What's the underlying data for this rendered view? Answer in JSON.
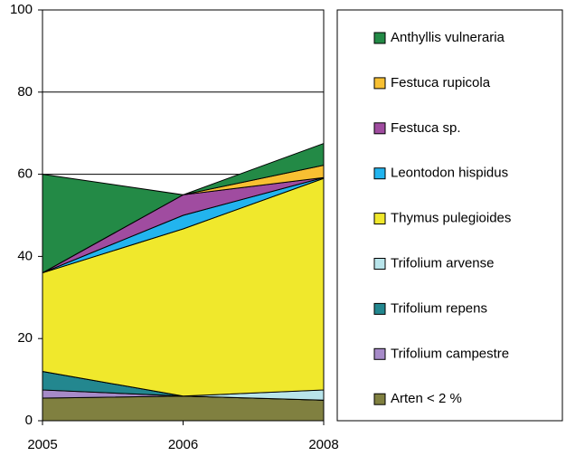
{
  "chart_data": {
    "type": "stacked-area",
    "categories": [
      "2005",
      "2006",
      "2008"
    ],
    "series": [
      {
        "name": "Arten < 2 %",
        "color": "#808040",
        "values": [
          5.5,
          6,
          5
        ]
      },
      {
        "name": "Trifolium campestre",
        "color": "#a68ac8",
        "values": [
          2,
          0,
          0
        ]
      },
      {
        "name": "Trifolium repens",
        "color": "#23878f",
        "values": [
          4.5,
          0,
          0
        ]
      },
      {
        "name": "Trifolium arvense",
        "color": "#b8e4ea",
        "values": [
          0,
          0,
          2.5
        ]
      },
      {
        "name": "Thymus pulegioides",
        "color": "#f0e82c",
        "values": [
          24,
          40.7,
          51.5
        ]
      },
      {
        "name": "Leontodon hispidus",
        "color": "#22b4ee",
        "values": [
          0,
          3.3,
          0.2
        ]
      },
      {
        "name": "Festuca sp.",
        "color": "#a04ca0",
        "values": [
          0,
          5,
          0
        ]
      },
      {
        "name": "Festuca rupicola",
        "color": "#f8c032",
        "values": [
          0,
          0,
          3
        ]
      },
      {
        "name": "Anthyllis vulneraria",
        "color": "#238a46",
        "values": [
          24,
          0,
          5.3
        ]
      }
    ],
    "ylim": [
      0,
      100
    ],
    "yticks": [
      0,
      20,
      40,
      60,
      80,
      100
    ],
    "grid": true
  }
}
